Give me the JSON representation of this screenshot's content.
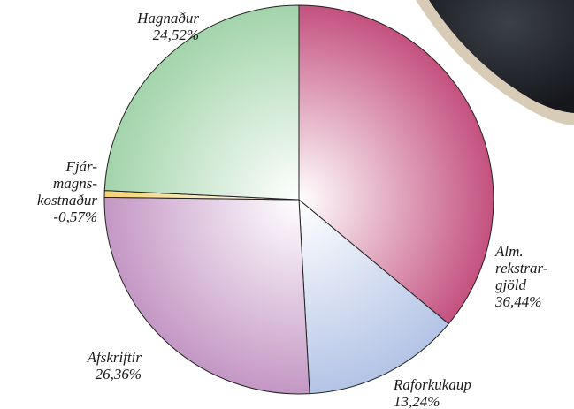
{
  "chart_data": {
    "type": "pie",
    "categories": [
      [
        "Alm.",
        "rekstrar-",
        "gjöld"
      ],
      [
        "Raforkukaup"
      ],
      [
        "Afskriftir"
      ],
      [
        "Fjár-",
        "magns-",
        "kostnaður"
      ],
      [
        "Hagnaður"
      ]
    ],
    "values": [
      36.44,
      13.24,
      26.36,
      -0.57,
      24.52
    ],
    "value_labels": [
      "36,44%",
      "13,24%",
      "26,36%",
      "-0,57%",
      "24,52%"
    ],
    "colors": [
      "#c4517f",
      "#b4c4e6",
      "#c497c4",
      "#f2d472",
      "#a2d4aa"
    ]
  }
}
